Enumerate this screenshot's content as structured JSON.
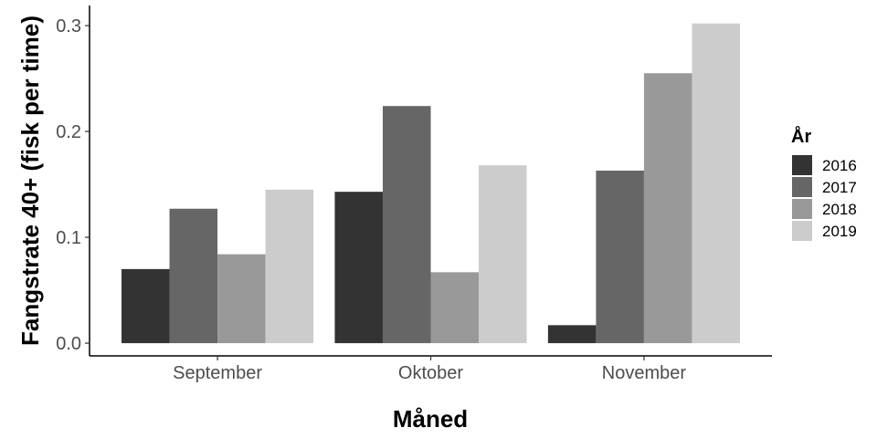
{
  "chart_data": {
    "type": "bar",
    "xlabel": "Måned",
    "ylabel": "Fangstrate 40+ (fisk per time)",
    "categories": [
      "September",
      "Oktober",
      "November"
    ],
    "series": [
      {
        "name": "2016",
        "color": "#333333",
        "values": [
          0.07,
          0.143,
          0.017
        ]
      },
      {
        "name": "2017",
        "color": "#666666",
        "values": [
          0.127,
          0.224,
          0.163
        ]
      },
      {
        "name": "2018",
        "color": "#999999",
        "values": [
          0.084,
          0.067,
          0.255
        ]
      },
      {
        "name": "2019",
        "color": "#cccccc",
        "values": [
          0.145,
          0.168,
          0.302
        ]
      }
    ],
    "ylim": [
      -0.012,
      0.319
    ],
    "yticks": [
      0.0,
      0.1,
      0.2,
      0.3
    ],
    "ytick_labels": [
      "0.0",
      "0.1",
      "0.2",
      "0.3"
    ],
    "legend": {
      "title": "År",
      "position": "right"
    },
    "grid": false
  }
}
